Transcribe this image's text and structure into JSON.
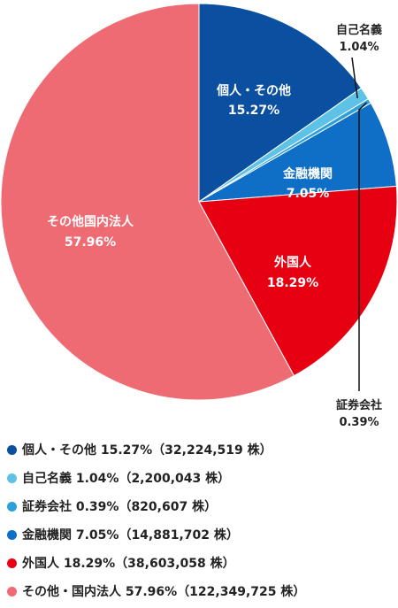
{
  "chart_data": {
    "type": "pie",
    "slices": [
      {
        "name": "個人・その他",
        "percent": 15.27,
        "label": "15.27%",
        "color": "#0a4fa0"
      },
      {
        "name": "自己名義",
        "percent": 1.04,
        "label": "1.04%",
        "color": "#5ec1e6"
      },
      {
        "name": "証券会社",
        "percent": 0.39,
        "label": "0.39%",
        "color": "#2d9fd9"
      },
      {
        "name": "金融機関",
        "percent": 7.05,
        "label": "7.05%",
        "color": "#0f6fc6"
      },
      {
        "name": "外国人",
        "percent": 18.29,
        "label": "18.29%",
        "color": "#e60012"
      },
      {
        "name": "その他国内法人",
        "percent": 57.96,
        "label": "57.96%",
        "color": "#ee6b73"
      }
    ],
    "legend": [
      {
        "text": "個人・その他 15.27%（32,224,519 株）",
        "color": "#0a4fa0"
      },
      {
        "text": "自己名義 1.04%（2,200,043 株）",
        "color": "#5ec1e6"
      },
      {
        "text": "証券会社 0.39%（820,607 株）",
        "color": "#2d9fd9"
      },
      {
        "text": "金融機関 7.05%（14,881,702 株）",
        "color": "#0f6fc6"
      },
      {
        "text": "外国人 18.29%（38,603,058 株）",
        "color": "#e60012"
      },
      {
        "text": "その他・国内法人 57.96%（122,349,725 株）",
        "color": "#ee6b73"
      }
    ],
    "legend_position": "bottom"
  }
}
